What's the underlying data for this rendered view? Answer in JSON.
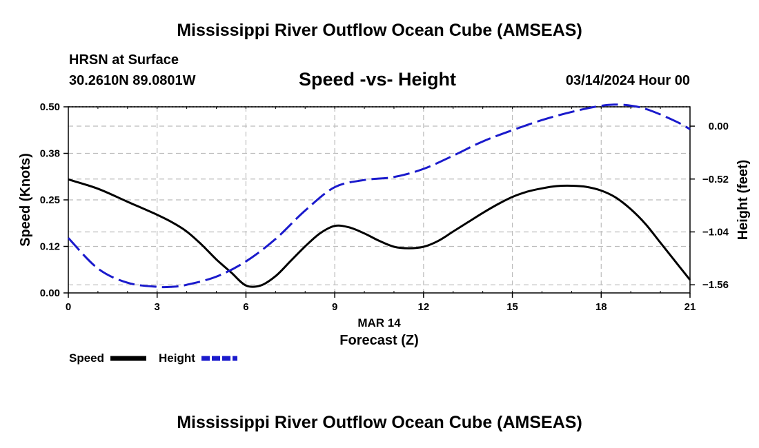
{
  "header": {
    "title": "Mississippi River Outflow Ocean Cube (AMSEAS)",
    "station_line1": "HRSN at Surface",
    "station_line2": "30.2610N  89.0801W",
    "chart_title": "Speed -vs- Height",
    "date_label": "03/14/2024 Hour 00"
  },
  "footer": {
    "title": "Mississippi River Outflow Ocean Cube (AMSEAS)"
  },
  "legend": {
    "speed_label": "Speed",
    "height_label": "Height"
  },
  "colors": {
    "speed": "#000000",
    "height": "#1a1acc",
    "grid": "#bbbbbb"
  },
  "chart_data": {
    "type": "line",
    "title": "Speed -vs- Height",
    "xlabel": "Forecast (Z)",
    "xlabel_date": "MAR 14",
    "ylabel": "Speed (Knots)",
    "y2label": "Height (feet)",
    "xlim": [
      0,
      21
    ],
    "ylim": [
      0,
      0.5
    ],
    "y2lim": [
      -1.64,
      0.19
    ],
    "x_ticks": [
      0,
      3,
      6,
      9,
      12,
      15,
      18,
      21
    ],
    "y_ticks": [
      0,
      0.125,
      0.25,
      0.375,
      0.5
    ],
    "y_tick_labels": [
      "0.00",
      "0.12",
      "0.25",
      "0.38",
      "0.50"
    ],
    "y2_ticks": [
      0.0,
      -0.52,
      -1.04,
      -1.56
    ],
    "y2_tick_labels": [
      "0.00",
      "−0.52",
      "−1.04",
      "−1.56"
    ],
    "series": [
      {
        "name": "Speed",
        "axis": "left",
        "style": "solid",
        "x": [
          0,
          1,
          2,
          3,
          3.5,
          4,
          4.5,
          5,
          5.5,
          6,
          6.5,
          7,
          7.5,
          8,
          8.5,
          9,
          9.5,
          10,
          10.5,
          11,
          11.5,
          12,
          12.5,
          13,
          13.5,
          14,
          14.5,
          15,
          15.5,
          16,
          16.5,
          17,
          17.5,
          18,
          18.5,
          19,
          19.5,
          20,
          20.5,
          21
        ],
        "values": [
          0.305,
          0.28,
          0.245,
          0.21,
          0.19,
          0.165,
          0.13,
          0.09,
          0.055,
          0.02,
          0.02,
          0.045,
          0.085,
          0.125,
          0.16,
          0.18,
          0.176,
          0.16,
          0.14,
          0.124,
          0.12,
          0.124,
          0.14,
          0.165,
          0.19,
          0.215,
          0.238,
          0.258,
          0.272,
          0.281,
          0.287,
          0.288,
          0.285,
          0.275,
          0.256,
          0.225,
          0.185,
          0.135,
          0.085,
          0.035
        ]
      },
      {
        "name": "Height",
        "axis": "right",
        "style": "dashed",
        "x": [
          0,
          1,
          2,
          3,
          3.5,
          4,
          5,
          6,
          7,
          8,
          9,
          10,
          11,
          12,
          13,
          14,
          15,
          16,
          17,
          18,
          18.7,
          19.5,
          20.5,
          21
        ],
        "values": [
          -1.1,
          -1.4,
          -1.54,
          -1.58,
          -1.58,
          -1.56,
          -1.48,
          -1.33,
          -1.11,
          -0.83,
          -0.6,
          -0.53,
          -0.5,
          -0.42,
          -0.29,
          -0.15,
          -0.04,
          0.06,
          0.14,
          0.2,
          0.21,
          0.17,
          0.05,
          -0.03
        ]
      }
    ]
  }
}
